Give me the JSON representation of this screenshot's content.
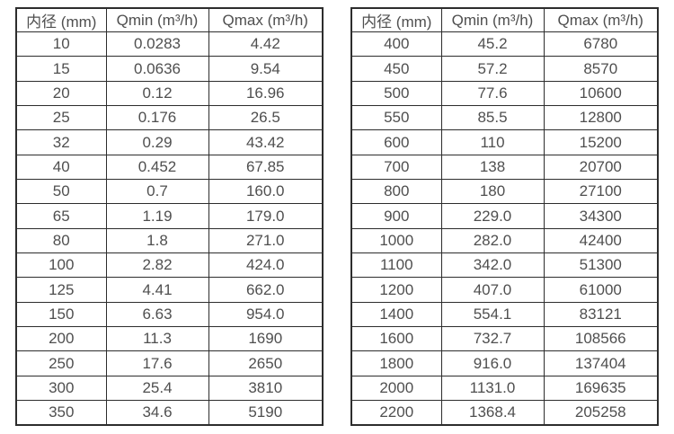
{
  "colors": {
    "background": "#ffffff",
    "border": "#2d2d2d",
    "text": "#4f4f4f"
  },
  "tables": [
    {
      "name": "flow-rate-table-small-diameters",
      "headers": [
        "内径 (mm)",
        "Qmin (m³/h)",
        "Qmax (m³/h)"
      ],
      "rows": [
        [
          "10",
          "0.0283",
          "4.42"
        ],
        [
          "15",
          "0.0636",
          "9.54"
        ],
        [
          "20",
          "0.12",
          "16.96"
        ],
        [
          "25",
          "0.176",
          "26.5"
        ],
        [
          "32",
          "0.29",
          "43.42"
        ],
        [
          "40",
          "0.452",
          "67.85"
        ],
        [
          "50",
          "0.7",
          "160.0"
        ],
        [
          "65",
          "1.19",
          "179.0"
        ],
        [
          "80",
          "1.8",
          "271.0"
        ],
        [
          "100",
          "2.82",
          "424.0"
        ],
        [
          "125",
          "4.41",
          "662.0"
        ],
        [
          "150",
          "6.63",
          "954.0"
        ],
        [
          "200",
          "11.3",
          "1690"
        ],
        [
          "250",
          "17.6",
          "2650"
        ],
        [
          "300",
          "25.4",
          "3810"
        ],
        [
          "350",
          "34.6",
          "5190"
        ]
      ]
    },
    {
      "name": "flow-rate-table-large-diameters",
      "headers": [
        "内径 (mm)",
        "Qmin (m³/h)",
        "Qmax (m³/h)"
      ],
      "rows": [
        [
          "400",
          "45.2",
          "6780"
        ],
        [
          "450",
          "57.2",
          "8570"
        ],
        [
          "500",
          "77.6",
          "10600"
        ],
        [
          "550",
          "85.5",
          "12800"
        ],
        [
          "600",
          "110",
          "15200"
        ],
        [
          "700",
          "138",
          "20700"
        ],
        [
          "800",
          "180",
          "27100"
        ],
        [
          "900",
          "229.0",
          "34300"
        ],
        [
          "1000",
          "282.0",
          "42400"
        ],
        [
          "1100",
          "342.0",
          "51300"
        ],
        [
          "1200",
          "407.0",
          "61000"
        ],
        [
          "1400",
          "554.1",
          "83121"
        ],
        [
          "1600",
          "732.7",
          "108566"
        ],
        [
          "1800",
          "916.0",
          "137404"
        ],
        [
          "2000",
          "1131.0",
          "169635"
        ],
        [
          "2200",
          "1368.4",
          "205258"
        ]
      ]
    }
  ]
}
